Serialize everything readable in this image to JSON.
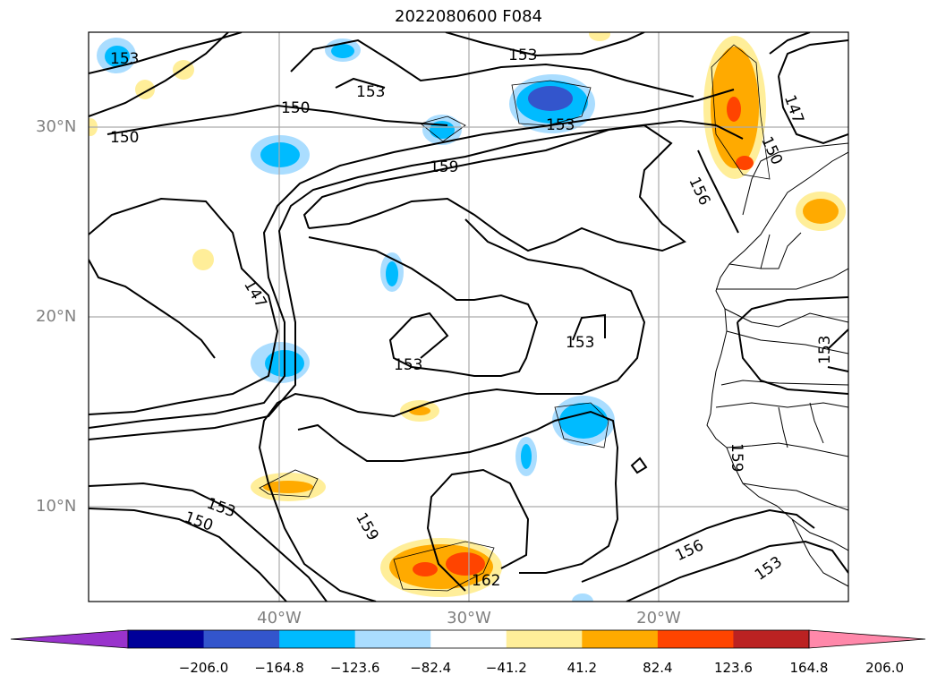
{
  "title": "2022080600 F084",
  "latitude_labels": [
    "30°N",
    "20°N",
    "10°N"
  ],
  "longitude_labels": [
    "40°W",
    "30°W",
    "20°W"
  ],
  "contour_labels": [
    "153",
    "150",
    "153",
    "150",
    "153",
    "159",
    "153",
    "147",
    "147",
    "150",
    "156",
    "153",
    "153",
    "153",
    "159",
    "162",
    "156",
    "153",
    "150",
    "153",
    "159"
  ],
  "colorbar": {
    "colors": [
      "#9933cc",
      "#000099",
      "#3355cc",
      "#00bbff",
      "#aaddff",
      "#ffffff",
      "#ffee99",
      "#ffaa00",
      "#ff4400",
      "#bb2222",
      "#ff88aa"
    ],
    "tick_labels": [
      "−206.0",
      "−164.8",
      "−123.6",
      "−82.4",
      "−41.2",
      "41.2",
      "82.4",
      "123.6",
      "164.8",
      "206.0"
    ]
  },
  "colors": {
    "light_blue": "#aaddff",
    "blue": "#00bbff",
    "dark_blue": "#3355cc",
    "yellow": "#ffee99",
    "orange": "#ffaa00",
    "red_orange": "#ff4400"
  }
}
